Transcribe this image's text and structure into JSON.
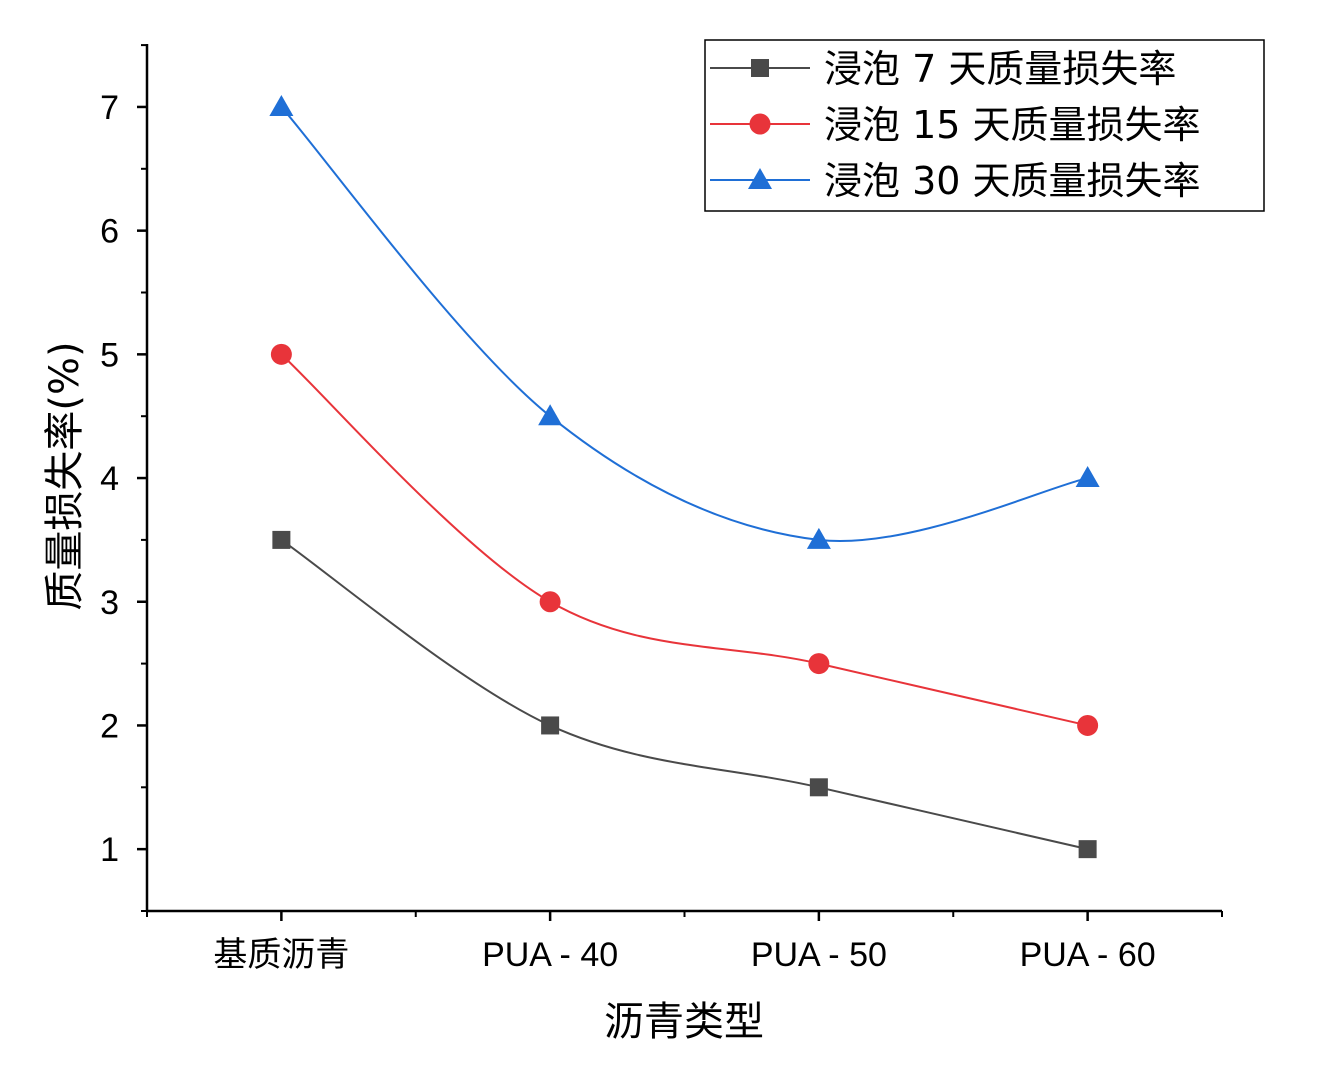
{
  "chart_data": {
    "type": "line",
    "title": "",
    "xlabel": "沥青类型",
    "ylabel": "质量损失率(%)",
    "categories": [
      "基质沥青",
      "PUA - 40",
      "PUA - 50",
      "PUA - 60"
    ],
    "ylim": [
      0.5,
      7.5
    ],
    "yticks": [
      "1",
      "2",
      "3",
      "4",
      "5",
      "6",
      "7"
    ],
    "legend_position": "top-right",
    "grid": false,
    "series": [
      {
        "name": "浸泡 7 天质量损失率",
        "values": [
          3.5,
          2.0,
          1.5,
          1.0
        ],
        "color": "#4a4a4a",
        "marker": "square"
      },
      {
        "name": "浸泡 15 天质量损失率",
        "values": [
          5.0,
          3.0,
          2.5,
          2.0
        ],
        "color": "#e8343a",
        "marker": "circle"
      },
      {
        "name": "浸泡 30 天质量损失率",
        "values": [
          7.0,
          4.5,
          3.5,
          4.0
        ],
        "color": "#1f6fd6",
        "marker": "triangle"
      }
    ]
  }
}
